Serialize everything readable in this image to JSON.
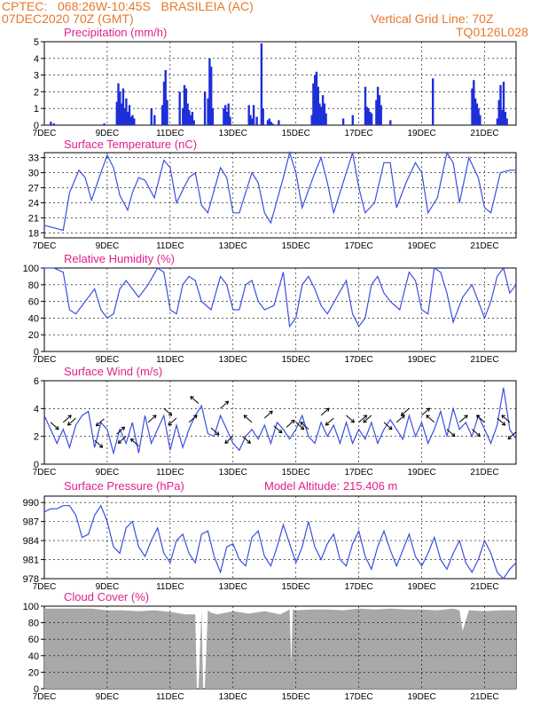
{
  "header": {
    "line1": "CPTEC:   068:26W-10:45S   BRASILEIA (AC)",
    "line2": "07DEC2020 70Z (GMT)",
    "grid_note": "Vertical Grid Line: 70Z",
    "code": "TQ0126L028"
  },
  "colors": {
    "header": "#e8782a",
    "title": "#e0208a",
    "line": "#3a4fe0",
    "bar": "#1e2fd8",
    "cloud": "#a8a8a8",
    "axis": "#000000",
    "grid": "#000000"
  },
  "x_axis": {
    "start_label": "7DEC",
    "tick_labels": [
      "9DEC",
      "11DEC",
      "13DEC",
      "15DEC",
      "17DEC",
      "19DEC",
      "21DEC"
    ],
    "range_days": [
      7,
      22
    ],
    "vertical_grid_days": [
      9,
      11,
      13,
      15,
      17,
      19,
      21
    ]
  },
  "chart_data": [
    {
      "type": "bar",
      "title": "Precipitation (mm/h)",
      "ylim": [
        0,
        5
      ],
      "yticks": [
        "0",
        "1",
        "2",
        "3",
        "4",
        "5"
      ],
      "x_unit": "day of December 2020",
      "series": [
        {
          "x": [
            7.2,
            7.3,
            8.9,
            9.3,
            9.35,
            9.4,
            9.45,
            9.5,
            9.55,
            9.6,
            9.65,
            9.7,
            9.75,
            9.8,
            9.85,
            10.4,
            10.5,
            10.75,
            10.8,
            10.85,
            10.9,
            11.3,
            11.4,
            11.45,
            11.5,
            11.55,
            11.6,
            11.65,
            11.7,
            11.75,
            12.1,
            12.2,
            12.25,
            12.3,
            12.35,
            12.7,
            12.75,
            12.8,
            12.85,
            12.9,
            13.5,
            13.55,
            13.6,
            13.65,
            13.75,
            13.9,
            13.95,
            14.1,
            14.15,
            14.2,
            14.25,
            14.45,
            15.5,
            15.55,
            15.6,
            15.65,
            15.7,
            15.75,
            15.8,
            15.85,
            15.9,
            15.95,
            16.5,
            16.8,
            17.2,
            17.25,
            17.3,
            17.35,
            17.4,
            17.55,
            17.6,
            17.65,
            17.7,
            18.0,
            19.35,
            20.6,
            20.65,
            20.7,
            20.75,
            20.8,
            20.85,
            21.4,
            21.45,
            21.5,
            21.55,
            21.6,
            21.65,
            21.7
          ],
          "values": [
            0.2,
            0.1,
            0.1,
            1.4,
            2.5,
            2.0,
            1.3,
            2.2,
            1.0,
            1.6,
            0.8,
            1.2,
            0.5,
            0.6,
            0.4,
            1.0,
            0.6,
            1.2,
            2.6,
            3.3,
            1.5,
            2.0,
            1.0,
            2.4,
            2.2,
            1.3,
            0.9,
            0.6,
            0.8,
            0.3,
            2.0,
            1.6,
            4.0,
            3.5,
            1.0,
            1.0,
            1.2,
            0.8,
            1.3,
            0.5,
            1.2,
            0.6,
            0.4,
            1.2,
            0.5,
            4.9,
            1.0,
            0.3,
            0.4,
            0.2,
            0.1,
            0.3,
            0.6,
            2.5,
            3.0,
            3.2,
            2.3,
            1.3,
            1.1,
            1.8,
            1.3,
            0.7,
            0.4,
            0.6,
            2.3,
            1.1,
            1.0,
            0.8,
            0.7,
            1.5,
            2.3,
            1.8,
            1.2,
            0.3,
            2.8,
            2.2,
            2.7,
            1.6,
            1.3,
            1.0,
            0.6,
            0.4,
            1.5,
            2.4,
            0.9,
            2.6,
            0.8,
            0.4
          ]
        }
      ]
    },
    {
      "type": "line",
      "title": "Surface Temperature (nC)",
      "ylim": [
        17,
        34
      ],
      "yticks": [
        "18",
        "21",
        "24",
        "27",
        "30",
        "33"
      ],
      "series": [
        {
          "x": [
            7.0,
            7.3,
            7.6,
            7.8,
            8.1,
            8.3,
            8.5,
            8.8,
            9.0,
            9.2,
            9.4,
            9.65,
            9.8,
            10.0,
            10.2,
            10.5,
            10.8,
            11.0,
            11.2,
            11.6,
            11.8,
            12.0,
            12.2,
            12.6,
            12.8,
            13.0,
            13.2,
            13.6,
            13.8,
            14.0,
            14.2,
            14.6,
            14.8,
            15.0,
            15.2,
            15.6,
            15.8,
            16.0,
            16.2,
            16.5,
            16.8,
            17.0,
            17.2,
            17.5,
            17.8,
            18.0,
            18.2,
            18.5,
            18.8,
            19.0,
            19.2,
            19.5,
            19.8,
            20.0,
            20.2,
            20.5,
            20.8,
            21.0,
            21.2,
            21.5,
            21.8,
            22.0
          ],
          "values": [
            19.5,
            19,
            18.5,
            26,
            30.5,
            29,
            24.5,
            30,
            33.5,
            31,
            25.5,
            22.5,
            26,
            29,
            28.5,
            25,
            32.5,
            31,
            24,
            29,
            30,
            23.5,
            22,
            31,
            29,
            22,
            22,
            30,
            28,
            22,
            20,
            29,
            34,
            30,
            23,
            30,
            33,
            28,
            22,
            28,
            34,
            27,
            22,
            24,
            32,
            32,
            23,
            28,
            32,
            30,
            22,
            25,
            34,
            32,
            24,
            33,
            29,
            23,
            22,
            30,
            30.5,
            30.5
          ]
        }
      ]
    },
    {
      "type": "line",
      "title": "Relative Humidity (%)",
      "ylim": [
        0,
        100
      ],
      "yticks": [
        "0",
        "20",
        "40",
        "60",
        "80",
        "100"
      ],
      "series": [
        {
          "x": [
            7.0,
            7.3,
            7.6,
            7.8,
            8.0,
            8.3,
            8.6,
            8.8,
            9.0,
            9.2,
            9.4,
            9.6,
            9.8,
            10.0,
            10.3,
            10.6,
            10.8,
            11.0,
            11.2,
            11.4,
            11.6,
            11.8,
            12.0,
            12.3,
            12.6,
            12.8,
            13.0,
            13.2,
            13.4,
            13.6,
            13.8,
            14.0,
            14.3,
            14.6,
            14.8,
            15.0,
            15.2,
            15.4,
            15.6,
            15.8,
            16.0,
            16.3,
            16.6,
            16.8,
            17.0,
            17.2,
            17.4,
            17.6,
            17.8,
            18.0,
            18.3,
            18.6,
            18.8,
            19.0,
            19.2,
            19.4,
            19.6,
            19.8,
            20.0,
            20.3,
            20.6,
            20.8,
            21.0,
            21.2,
            21.4,
            21.6,
            21.8,
            22.0
          ],
          "values": [
            100,
            100,
            95,
            50,
            45,
            60,
            75,
            50,
            40,
            45,
            75,
            85,
            75,
            65,
            80,
            100,
            95,
            50,
            45,
            80,
            90,
            85,
            60,
            50,
            90,
            80,
            50,
            50,
            80,
            85,
            60,
            50,
            55,
            95,
            30,
            40,
            80,
            90,
            75,
            55,
            45,
            65,
            85,
            45,
            30,
            40,
            80,
            90,
            70,
            60,
            50,
            95,
            85,
            50,
            45,
            100,
            95,
            70,
            35,
            65,
            80,
            60,
            40,
            60,
            90,
            100,
            70,
            80
          ]
        }
      ]
    },
    {
      "type": "line",
      "title": "Surface Wind (m/s)",
      "ylim": [
        0,
        6
      ],
      "yticks": [
        "0",
        "2",
        "4",
        "6"
      ],
      "series": [
        {
          "x": [
            7.0,
            7.2,
            7.4,
            7.6,
            7.8,
            8.0,
            8.2,
            8.4,
            8.6,
            8.8,
            9.0,
            9.2,
            9.4,
            9.6,
            9.8,
            10.0,
            10.2,
            10.4,
            10.6,
            10.8,
            11.0,
            11.2,
            11.4,
            11.6,
            11.8,
            12.0,
            12.2,
            12.4,
            12.6,
            12.8,
            13.0,
            13.2,
            13.4,
            13.6,
            13.8,
            14.0,
            14.2,
            14.4,
            14.6,
            14.8,
            15.0,
            15.2,
            15.4,
            15.6,
            15.8,
            16.0,
            16.2,
            16.4,
            16.6,
            16.8,
            17.0,
            17.2,
            17.4,
            17.6,
            17.8,
            18.0,
            18.2,
            18.4,
            18.6,
            18.8,
            19.0,
            19.2,
            19.4,
            19.6,
            19.8,
            20.0,
            20.2,
            20.4,
            20.6,
            20.8,
            21.0,
            21.2,
            21.4,
            21.6,
            21.8,
            22.0
          ],
          "values": [
            3.5,
            2.5,
            1.5,
            2.5,
            1.2,
            2.8,
            3.5,
            3.8,
            1.2,
            3.0,
            2.5,
            0.8,
            2.5,
            1.5,
            3.0,
            0.8,
            3.5,
            1.5,
            2.5,
            3.5,
            1.0,
            2.8,
            1.2,
            2.5,
            3.5,
            4.2,
            2.2,
            2.0,
            3.5,
            2.5,
            1.5,
            1.0,
            2.0,
            2.5,
            1.8,
            2.8,
            1.5,
            3.0,
            2.5,
            1.8,
            2.5,
            3.5,
            2.0,
            1.5,
            3.0,
            2.0,
            2.8,
            1.5,
            3.0,
            1.5,
            2.5,
            1.8,
            3.0,
            1.5,
            2.5,
            3.2,
            2.5,
            1.8,
            3.5,
            2.0,
            3.0,
            1.5,
            2.5,
            3.8,
            2.0,
            4.0,
            2.5,
            3.0,
            2.0,
            3.5,
            2.5,
            1.5,
            2.8,
            5.5,
            2.5,
            1.8
          ]
        }
      ],
      "wind_vector_days": [
        7.2,
        7.6,
        8.0,
        8.6,
        8.9,
        9.3,
        9.6,
        10.0,
        10.3,
        10.8,
        11.2,
        11.6,
        11.9,
        12.3,
        12.6,
        13.0,
        13.3,
        13.6,
        14.0,
        14.3,
        14.7,
        15.0,
        15.4,
        15.8,
        16.2,
        16.6,
        17.0,
        17.4,
        17.8,
        18.2,
        18.6,
        19.0,
        19.4,
        19.8,
        20.2,
        20.6,
        21.0,
        21.4,
        21.8,
        22.0
      ],
      "wind_vector_u": [
        1,
        1,
        -1,
        1,
        -1,
        1,
        -1,
        -1,
        1,
        1,
        -1,
        1,
        -1,
        1,
        1,
        -1,
        1,
        -1,
        1,
        1,
        1,
        1,
        -1,
        1,
        -1,
        1,
        1,
        -1,
        1,
        1,
        -1,
        1,
        -1,
        1,
        1,
        1,
        -1,
        1,
        -1,
        -1
      ],
      "wind_vector_v": [
        -1,
        1,
        -1,
        -1,
        -1,
        1,
        -1,
        1,
        1,
        -1,
        -1,
        1,
        1,
        -1,
        1,
        -1,
        -1,
        1,
        1,
        -1,
        1,
        -1,
        1,
        1,
        -1,
        -1,
        1,
        -1,
        -1,
        1,
        -1,
        1,
        1,
        -1,
        1,
        -1,
        1,
        -1,
        1,
        -1
      ]
    },
    {
      "type": "line",
      "title": "Surface Pressure (hPa)",
      "ylim": [
        978,
        991
      ],
      "yticks": [
        "978",
        "981",
        "984",
        "987",
        "990"
      ],
      "series": [
        {
          "x": [
            7.0,
            7.2,
            7.4,
            7.6,
            7.8,
            8.0,
            8.2,
            8.4,
            8.6,
            8.8,
            9.0,
            9.2,
            9.4,
            9.6,
            9.8,
            10.0,
            10.2,
            10.4,
            10.6,
            10.8,
            11.0,
            11.2,
            11.4,
            11.6,
            11.8,
            12.0,
            12.2,
            12.4,
            12.6,
            12.8,
            13.0,
            13.2,
            13.4,
            13.6,
            13.8,
            14.0,
            14.2,
            14.4,
            14.6,
            14.8,
            15.0,
            15.2,
            15.4,
            15.6,
            15.8,
            16.0,
            16.2,
            16.4,
            16.6,
            16.8,
            17.0,
            17.2,
            17.4,
            17.6,
            17.8,
            18.0,
            18.2,
            18.4,
            18.6,
            18.8,
            19.0,
            19.2,
            19.4,
            19.6,
            19.8,
            20.0,
            20.2,
            20.4,
            20.6,
            20.8,
            21.0,
            21.2,
            21.4,
            21.6,
            21.8,
            22.0
          ],
          "values": [
            988.5,
            989,
            989,
            989.5,
            989.5,
            988,
            984.5,
            985,
            988,
            989.5,
            987,
            983,
            982,
            986,
            987,
            983,
            981.5,
            984,
            986,
            982,
            980.5,
            984,
            985,
            982,
            980.5,
            985,
            985.5,
            981.5,
            979,
            983,
            983.5,
            981,
            980,
            984.5,
            985.5,
            981.5,
            980,
            983,
            986.5,
            983.5,
            980.5,
            983,
            987,
            983,
            981,
            983.5,
            985,
            981,
            980,
            983.5,
            985.5,
            981.5,
            979.5,
            983,
            985.5,
            982.5,
            980,
            982.5,
            985,
            981.5,
            980,
            982,
            984.5,
            981,
            979.5,
            982,
            984,
            980.5,
            979,
            981,
            984,
            982,
            979,
            978,
            979.5,
            980.5
          ]
        }
      ],
      "annotation": "Model Altitude: 215.406 m"
    },
    {
      "type": "area",
      "title": "Cloud Cover (%)",
      "ylim": [
        0,
        100
      ],
      "yticks": [
        "0",
        "20",
        "40",
        "60",
        "80",
        "100"
      ],
      "series": [
        {
          "x": [
            7.0,
            7.5,
            8.0,
            8.5,
            9.0,
            9.5,
            10.0,
            10.5,
            11.0,
            11.5,
            11.8,
            11.85,
            11.9,
            12.0,
            12.05,
            12.1,
            12.2,
            12.3,
            12.5,
            13.0,
            13.5,
            14.0,
            14.5,
            14.8,
            14.85,
            14.9,
            15.0,
            15.5,
            16.0,
            16.5,
            17.0,
            17.5,
            18.0,
            18.5,
            19.0,
            19.5,
            20.0,
            20.2,
            20.3,
            20.5,
            21.0,
            21.5,
            22.0
          ],
          "values": [
            97,
            97,
            97,
            97,
            95,
            95,
            94,
            95,
            93,
            90,
            90,
            0,
            0,
            95,
            0,
            0,
            95,
            92,
            90,
            94,
            91,
            94,
            90,
            96,
            30,
            96,
            95,
            96,
            96,
            95,
            97,
            96,
            97,
            96,
            96,
            95,
            97,
            95,
            70,
            95,
            94,
            95,
            95
          ]
        }
      ]
    }
  ]
}
